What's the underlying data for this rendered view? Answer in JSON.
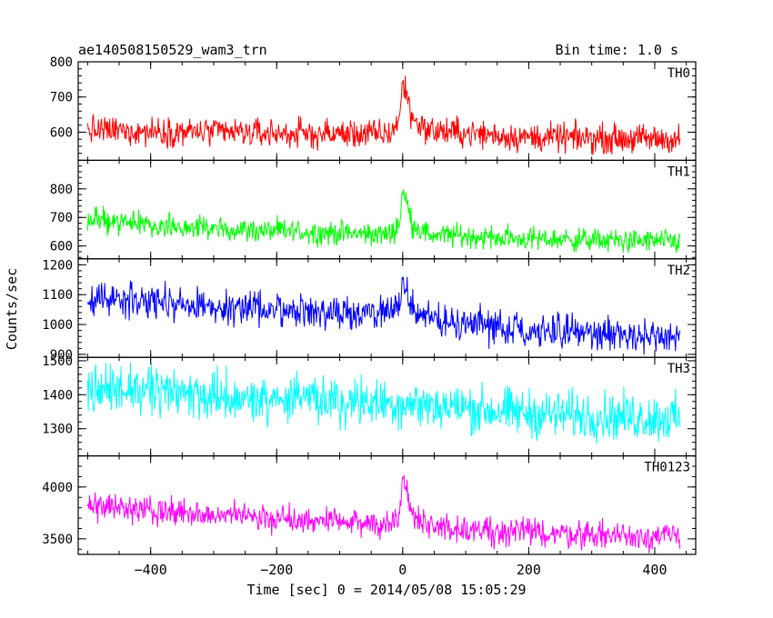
{
  "title_left": "ae140508150529_wam3_trn",
  "title_right": "Bin time: 1.0 s",
  "chart_data": {
    "type": "line",
    "xlabel": "Time [sec] 0 = 2014/05/08 15:05:29",
    "ylabel": "Counts/sec",
    "xlim": [
      -515,
      465
    ],
    "x_ticks": [
      -400,
      -200,
      0,
      200,
      400
    ],
    "x_range": [
      -500,
      440
    ],
    "bin_time": 1.0,
    "panels": [
      {
        "name": "TH0",
        "color": "#ff0000",
        "ylim": [
          520,
          800
        ],
        "ticks": [
          600,
          700,
          800
        ],
        "profile": [
          [
            -500,
            605
          ],
          [
            -300,
            600
          ],
          [
            -150,
            595
          ],
          [
            -20,
            595
          ],
          [
            -5,
            640
          ],
          [
            0,
            740
          ],
          [
            5,
            720
          ],
          [
            15,
            640
          ],
          [
            40,
            605
          ],
          [
            200,
            585
          ],
          [
            440,
            580
          ]
        ],
        "noise": 55
      },
      {
        "name": "TH1",
        "color": "#00ff00",
        "ylim": [
          555,
          900
        ],
        "ticks": [
          600,
          700,
          800
        ],
        "profile": [
          [
            -500,
            690
          ],
          [
            -300,
            660
          ],
          [
            -100,
            645
          ],
          [
            -20,
            640
          ],
          [
            -5,
            680
          ],
          [
            0,
            800
          ],
          [
            5,
            760
          ],
          [
            15,
            680
          ],
          [
            40,
            640
          ],
          [
            200,
            625
          ],
          [
            440,
            615
          ]
        ],
        "noise": 55
      },
      {
        "name": "TH2",
        "color": "#0000ff",
        "ylim": [
          890,
          1220
        ],
        "ticks": [
          900,
          1000,
          1100,
          1200
        ],
        "profile": [
          [
            -500,
            1090
          ],
          [
            -300,
            1060
          ],
          [
            -100,
            1040
          ],
          [
            -20,
            1040
          ],
          [
            -5,
            1060
          ],
          [
            0,
            1150
          ],
          [
            5,
            1100
          ],
          [
            20,
            1040
          ],
          [
            100,
            1000
          ],
          [
            300,
            970
          ],
          [
            440,
            955
          ]
        ],
        "noise": 75
      },
      {
        "name": "TH3",
        "color": "#00ffff",
        "ylim": [
          1220,
          1510
        ],
        "ticks": [
          1300,
          1400,
          1500
        ],
        "profile": [
          [
            -500,
            1420
          ],
          [
            -300,
            1395
          ],
          [
            -100,
            1380
          ],
          [
            0,
            1375
          ],
          [
            200,
            1345
          ],
          [
            440,
            1330
          ]
        ],
        "noise": 95
      },
      {
        "name": "TH0123",
        "color": "#ff00ff",
        "ylim": [
          3350,
          4300
        ],
        "ticks": [
          3500,
          4000
        ],
        "profile": [
          [
            -500,
            3820
          ],
          [
            -300,
            3720
          ],
          [
            -100,
            3660
          ],
          [
            -20,
            3640
          ],
          [
            -5,
            3750
          ],
          [
            0,
            4150
          ],
          [
            5,
            3950
          ],
          [
            15,
            3750
          ],
          [
            40,
            3620
          ],
          [
            200,
            3560
          ],
          [
            440,
            3520
          ]
        ],
        "noise": 180
      }
    ]
  }
}
